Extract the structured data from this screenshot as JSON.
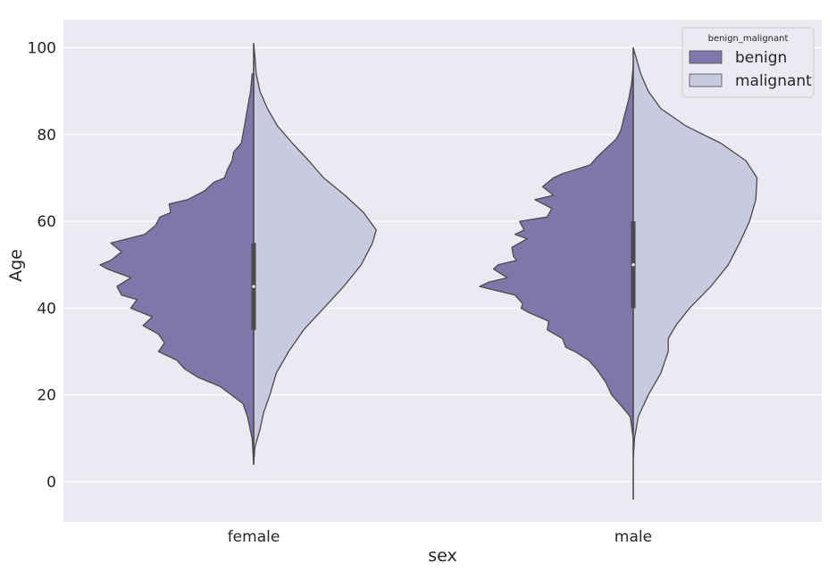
{
  "chart_data": {
    "type": "violin",
    "split": true,
    "xlabel": "sex",
    "ylabel": "Age",
    "categories": [
      "female",
      "male"
    ],
    "ylim": [
      -9,
      107
    ],
    "yticks": [
      0,
      20,
      40,
      60,
      80,
      100
    ],
    "grid": true,
    "legend": {
      "title": "benign_malignant",
      "placement": "top-right",
      "entries": [
        "benign",
        "malignant"
      ]
    },
    "colors": {
      "background": "#eaeaf2",
      "grid": "#ffffff",
      "benign": "#7f76aa",
      "malignant": "#c9c9df",
      "outline": "#4a4a4a",
      "box": "#4a4a4a"
    },
    "series": [
      {
        "name": "benign",
        "side": "left",
        "violins": [
          {
            "category": "female",
            "y_range": [
              4,
              94
            ],
            "density_profile": [
              [
                4,
                0.0
              ],
              [
                10,
                0.01
              ],
              [
                15,
                0.04
              ],
              [
                18,
                0.07
              ],
              [
                22,
                0.22
              ],
              [
                24,
                0.36
              ],
              [
                26,
                0.45
              ],
              [
                28,
                0.5
              ],
              [
                30,
                0.62
              ],
              [
                32,
                0.58
              ],
              [
                34,
                0.62
              ],
              [
                36,
                0.72
              ],
              [
                38,
                0.66
              ],
              [
                40,
                0.8
              ],
              [
                42,
                0.76
              ],
              [
                43,
                0.86
              ],
              [
                45,
                0.89
              ],
              [
                47,
                0.8
              ],
              [
                49,
                0.95
              ],
              [
                50,
                1.0
              ],
              [
                51,
                0.93
              ],
              [
                53,
                0.86
              ],
              [
                55,
                0.93
              ],
              [
                57,
                0.71
              ],
              [
                59,
                0.64
              ],
              [
                61,
                0.61
              ],
              [
                62,
                0.54
              ],
              [
                64,
                0.55
              ],
              [
                65,
                0.43
              ],
              [
                67,
                0.32
              ],
              [
                69,
                0.26
              ],
              [
                70,
                0.19
              ],
              [
                72,
                0.17
              ],
              [
                74,
                0.14
              ],
              [
                76,
                0.13
              ],
              [
                78,
                0.08
              ],
              [
                82,
                0.06
              ],
              [
                86,
                0.04
              ],
              [
                90,
                0.02
              ],
              [
                94,
                0.01
              ]
            ]
          },
          {
            "category": "male",
            "y_range": [
              15,
              92
            ],
            "density_profile": [
              [
                10,
                0.0
              ],
              [
                15,
                0.02
              ],
              [
                18,
                0.09
              ],
              [
                20,
                0.14
              ],
              [
                23,
                0.18
              ],
              [
                26,
                0.24
              ],
              [
                28,
                0.29
              ],
              [
                30,
                0.38
              ],
              [
                31,
                0.44
              ],
              [
                33,
                0.46
              ],
              [
                35,
                0.56
              ],
              [
                37,
                0.55
              ],
              [
                39,
                0.68
              ],
              [
                40,
                0.73
              ],
              [
                41,
                0.72
              ],
              [
                43,
                0.77
              ],
              [
                45,
                1.0
              ],
              [
                46,
                0.94
              ],
              [
                47,
                0.82
              ],
              [
                49,
                0.91
              ],
              [
                50,
                0.88
              ],
              [
                51,
                0.76
              ],
              [
                52,
                0.78
              ],
              [
                54,
                0.79
              ],
              [
                56,
                0.69
              ],
              [
                57,
                0.77
              ],
              [
                58,
                0.71
              ],
              [
                60,
                0.74
              ],
              [
                61,
                0.56
              ],
              [
                63,
                0.53
              ],
              [
                65,
                0.64
              ],
              [
                66,
                0.52
              ],
              [
                68,
                0.59
              ],
              [
                70,
                0.52
              ],
              [
                71,
                0.46
              ],
              [
                73,
                0.28
              ],
              [
                75,
                0.23
              ],
              [
                77,
                0.17
              ],
              [
                79,
                0.11
              ],
              [
                81,
                0.08
              ],
              [
                84,
                0.06
              ],
              [
                88,
                0.03
              ],
              [
                92,
                0.01
              ],
              [
                96,
                0.0
              ]
            ]
          }
        ]
      },
      {
        "name": "malignant",
        "side": "right",
        "violins": [
          {
            "category": "female",
            "y_range": [
              4,
              101
            ],
            "density_profile": [
              [
                4,
                0.0
              ],
              [
                8,
                0.01
              ],
              [
                12,
                0.05
              ],
              [
                16,
                0.08
              ],
              [
                20,
                0.13
              ],
              [
                25,
                0.18
              ],
              [
                30,
                0.28
              ],
              [
                35,
                0.4
              ],
              [
                40,
                0.56
              ],
              [
                45,
                0.72
              ],
              [
                50,
                0.86
              ],
              [
                55,
                0.95
              ],
              [
                58,
                0.98
              ],
              [
                62,
                0.88
              ],
              [
                66,
                0.73
              ],
              [
                70,
                0.56
              ],
              [
                74,
                0.44
              ],
              [
                78,
                0.31
              ],
              [
                82,
                0.19
              ],
              [
                86,
                0.11
              ],
              [
                90,
                0.05
              ],
              [
                94,
                0.02
              ],
              [
                98,
                0.01
              ],
              [
                101,
                0.0
              ]
            ]
          },
          {
            "category": "male",
            "y_range": [
              -4,
              100
            ],
            "density_profile": [
              [
                -4,
                0.0
              ],
              [
                5,
                0.0
              ],
              [
                10,
                0.01
              ],
              [
                15,
                0.04
              ],
              [
                20,
                0.12
              ],
              [
                25,
                0.22
              ],
              [
                30,
                0.28
              ],
              [
                33,
                0.28
              ],
              [
                36,
                0.34
              ],
              [
                40,
                0.45
              ],
              [
                45,
                0.62
              ],
              [
                50,
                0.76
              ],
              [
                55,
                0.85
              ],
              [
                60,
                0.93
              ],
              [
                65,
                0.98
              ],
              [
                70,
                0.99
              ],
              [
                74,
                0.9
              ],
              [
                78,
                0.7
              ],
              [
                82,
                0.42
              ],
              [
                86,
                0.22
              ],
              [
                90,
                0.12
              ],
              [
                94,
                0.06
              ],
              [
                98,
                0.02
              ],
              [
                100,
                0.0
              ]
            ]
          }
        ]
      }
    ],
    "box": [
      {
        "category": "female",
        "q1": 35,
        "median": 45,
        "q3": 55
      },
      {
        "category": "male",
        "q1": 40,
        "median": 50,
        "q3": 60
      }
    ]
  }
}
